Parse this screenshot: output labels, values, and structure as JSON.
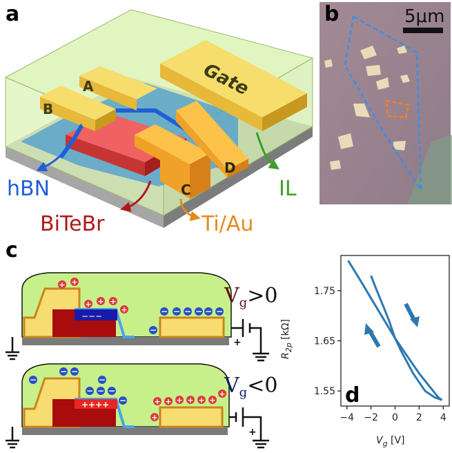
{
  "panels": {
    "a": {
      "label": "a",
      "gate_label": "Gate",
      "contacts": [
        "A",
        "B",
        "C",
        "D"
      ],
      "legend": [
        {
          "text": "hBN",
          "color": "#1f5fd6"
        },
        {
          "text": "BiTeBr",
          "color": "#b01818"
        },
        {
          "text": "Ti/Au",
          "color": "#e38a1c"
        },
        {
          "text": "IL",
          "color": "#3c9e28"
        }
      ]
    },
    "b": {
      "label": "b",
      "scale_bar": "5μm",
      "photo_bg": "#9d8590"
    },
    "c": {
      "label": "c",
      "top_condition": "Vg>0",
      "bottom_condition": "Vg<0",
      "top_vg": "V",
      "top_sub": "g",
      "top_rel": ">0",
      "bottom_vg": "V",
      "bottom_sub": "g",
      "bottom_rel": "<0",
      "plus": "+",
      "minus": "−",
      "charges_top": "−−−",
      "charges_bottom": "++++"
    },
    "d": {
      "label": "d"
    }
  },
  "chart_data": {
    "type": "line",
    "xlabel": "V_g [V]",
    "xlabel_main": "V",
    "xlabel_sub": "g",
    "xlabel_unit": " [V]",
    "ylabel": "R_2p [kΩ]",
    "ylabel_main": "R",
    "ylabel_sub": "2p",
    "ylabel_unit": " [kΩ]",
    "xlim": [
      -4.5,
      4.5
    ],
    "ylim": [
      1.52,
      1.82
    ],
    "xticks": [
      -4,
      -2,
      0,
      2,
      4
    ],
    "xtick_labels": [
      "−4",
      "−2",
      "0",
      "2",
      "4"
    ],
    "yticks": [
      1.55,
      1.65,
      1.75
    ],
    "ytick_labels": [
      "1.55",
      "1.65",
      "1.75"
    ],
    "line_color": "#2e78b0",
    "series": [
      {
        "x": [
          -3.9,
          -3.0,
          -2.0,
          -1.0,
          0.0,
          1.0,
          2.0,
          3.0,
          3.6,
          3.9
        ],
        "y": [
          1.81,
          1.775,
          1.735,
          1.695,
          1.655,
          1.62,
          1.585,
          1.555,
          1.537,
          1.532
        ]
      },
      {
        "x": [
          3.9,
          3.3,
          2.5,
          1.5,
          0.5,
          0.0,
          -0.5,
          -1.0,
          -1.6,
          -2.0
        ],
        "y": [
          1.532,
          1.537,
          1.55,
          1.585,
          1.63,
          1.655,
          1.69,
          1.72,
          1.755,
          1.78
        ]
      }
    ]
  }
}
